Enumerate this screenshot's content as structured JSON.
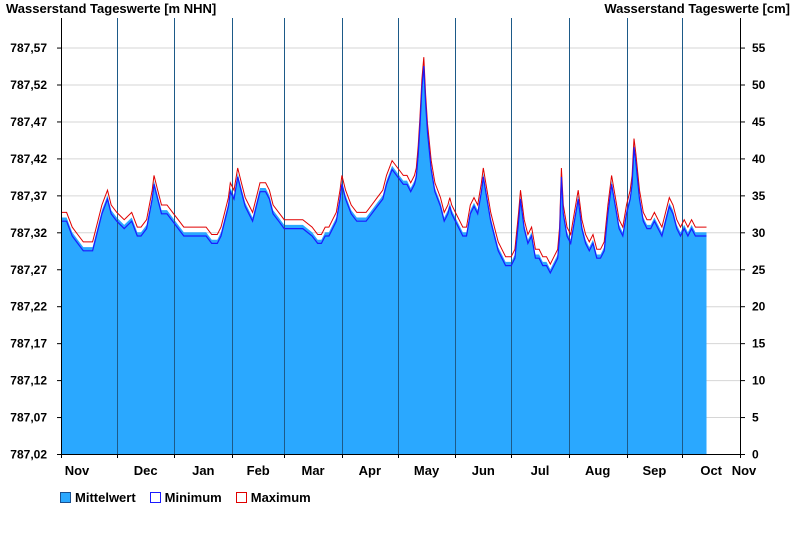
{
  "chart_data": {
    "type": "area",
    "title_left": "Wasserstand Tageswerte [m NHN]",
    "title_right": "Wasserstand Tageswerte [cm]",
    "y_left_ticks": [
      "787,57",
      "787,52",
      "787,47",
      "787,42",
      "787,37",
      "787,32",
      "787,27",
      "787,22",
      "787,17",
      "787,12",
      "787,07",
      "787,02"
    ],
    "y_right_ticks": [
      "55",
      "50",
      "45",
      "40",
      "35",
      "30",
      "25",
      "20",
      "15",
      "10",
      "5",
      "0"
    ],
    "ylim_cm": [
      0,
      59
    ],
    "x_ticks": [
      "Nov",
      "Dec",
      "Jan",
      "Feb",
      "Mar",
      "Apr",
      "May",
      "Jun",
      "Jul",
      "Aug",
      "Sep",
      "Oct",
      "Nov"
    ],
    "x_days": [
      0,
      30,
      61,
      92,
      120,
      151,
      181,
      212,
      242,
      273,
      304,
      334,
      365
    ],
    "grid": true,
    "legend_position": "bottom-left",
    "series": [
      {
        "name": "Mittelwert",
        "color": "#2aa8ff"
      },
      {
        "name": "Minimum",
        "color": "#1a1aff"
      },
      {
        "name": "Maximum",
        "color": "#e00000"
      }
    ],
    "mean_points": [
      [
        0,
        32
      ],
      [
        3,
        32
      ],
      [
        6,
        30
      ],
      [
        9,
        29
      ],
      [
        12,
        28
      ],
      [
        17,
        28
      ],
      [
        20,
        31
      ],
      [
        22,
        33
      ],
      [
        25,
        35
      ],
      [
        27,
        33
      ],
      [
        30,
        32
      ],
      [
        34,
        31
      ],
      [
        38,
        32
      ],
      [
        41,
        30
      ],
      [
        43,
        30
      ],
      [
        46,
        31
      ],
      [
        49,
        35
      ],
      [
        50,
        37
      ],
      [
        52,
        35
      ],
      [
        54,
        33
      ],
      [
        57,
        33
      ],
      [
        60,
        32
      ],
      [
        63,
        31
      ],
      [
        66,
        30
      ],
      [
        72,
        30
      ],
      [
        78,
        30
      ],
      [
        81,
        29
      ],
      [
        84,
        29
      ],
      [
        86,
        30
      ],
      [
        88,
        32
      ],
      [
        90,
        34
      ],
      [
        91,
        36
      ],
      [
        93,
        35
      ],
      [
        95,
        38
      ],
      [
        97,
        36
      ],
      [
        99,
        34
      ],
      [
        101,
        33
      ],
      [
        103,
        32
      ],
      [
        105,
        34
      ],
      [
        107,
        36
      ],
      [
        110,
        36
      ],
      [
        112,
        35
      ],
      [
        114,
        33
      ],
      [
        117,
        32
      ],
      [
        120,
        31
      ],
      [
        124,
        31
      ],
      [
        130,
        31
      ],
      [
        135,
        30
      ],
      [
        138,
        29
      ],
      [
        140,
        29
      ],
      [
        142,
        30
      ],
      [
        144,
        30
      ],
      [
        146,
        31
      ],
      [
        148,
        32
      ],
      [
        150,
        35
      ],
      [
        151,
        37
      ],
      [
        153,
        35
      ],
      [
        156,
        33
      ],
      [
        159,
        32
      ],
      [
        164,
        32
      ],
      [
        167,
        33
      ],
      [
        170,
        34
      ],
      [
        173,
        35
      ],
      [
        175,
        37
      ],
      [
        178,
        39
      ],
      [
        181,
        38
      ],
      [
        184,
        37
      ],
      [
        186,
        37
      ],
      [
        188,
        36
      ],
      [
        190,
        37
      ],
      [
        191,
        38
      ],
      [
        192,
        41
      ],
      [
        193,
        45
      ],
      [
        194,
        50
      ],
      [
        195,
        53
      ],
      [
        196,
        48
      ],
      [
        197,
        44
      ],
      [
        199,
        39
      ],
      [
        201,
        36
      ],
      [
        204,
        34
      ],
      [
        206,
        32
      ],
      [
        208,
        33
      ],
      [
        209,
        34
      ],
      [
        210,
        33
      ],
      [
        212,
        32
      ],
      [
        214,
        31
      ],
      [
        216,
        30
      ],
      [
        218,
        30
      ],
      [
        220,
        33
      ],
      [
        222,
        34
      ],
      [
        224,
        33
      ],
      [
        226,
        36
      ],
      [
        227,
        38
      ],
      [
        229,
        35
      ],
      [
        231,
        32
      ],
      [
        233,
        30
      ],
      [
        235,
        28
      ],
      [
        237,
        27
      ],
      [
        239,
        26
      ],
      [
        242,
        26
      ],
      [
        244,
        27
      ],
      [
        246,
        32
      ],
      [
        247,
        35
      ],
      [
        249,
        31
      ],
      [
        251,
        29
      ],
      [
        253,
        30
      ],
      [
        255,
        27
      ],
      [
        257,
        27
      ],
      [
        259,
        26
      ],
      [
        261,
        26
      ],
      [
        263,
        25
      ],
      [
        265,
        26
      ],
      [
        267,
        27
      ],
      [
        268,
        30
      ],
      [
        269,
        38
      ],
      [
        270,
        33
      ],
      [
        272,
        30
      ],
      [
        274,
        29
      ],
      [
        276,
        32
      ],
      [
        278,
        35
      ],
      [
        280,
        31
      ],
      [
        282,
        29
      ],
      [
        284,
        28
      ],
      [
        286,
        29
      ],
      [
        288,
        27
      ],
      [
        290,
        27
      ],
      [
        292,
        28
      ],
      [
        294,
        33
      ],
      [
        296,
        37
      ],
      [
        298,
        34
      ],
      [
        300,
        31
      ],
      [
        302,
        30
      ],
      [
        304,
        33
      ],
      [
        306,
        35
      ],
      [
        307,
        37
      ],
      [
        308,
        42
      ],
      [
        309,
        40
      ],
      [
        311,
        35
      ],
      [
        313,
        32
      ],
      [
        315,
        31
      ],
      [
        317,
        31
      ],
      [
        319,
        32
      ],
      [
        321,
        31
      ],
      [
        323,
        30
      ],
      [
        325,
        32
      ],
      [
        327,
        34
      ],
      [
        329,
        33
      ],
      [
        331,
        31
      ],
      [
        333,
        30
      ],
      [
        335,
        31
      ],
      [
        337,
        30
      ],
      [
        339,
        31
      ],
      [
        341,
        30
      ],
      [
        343,
        30
      ],
      [
        345,
        30
      ],
      [
        347,
        30
      ]
    ],
    "min_offset_cm": -0.5,
    "max_offset_cm": 0.7
  }
}
